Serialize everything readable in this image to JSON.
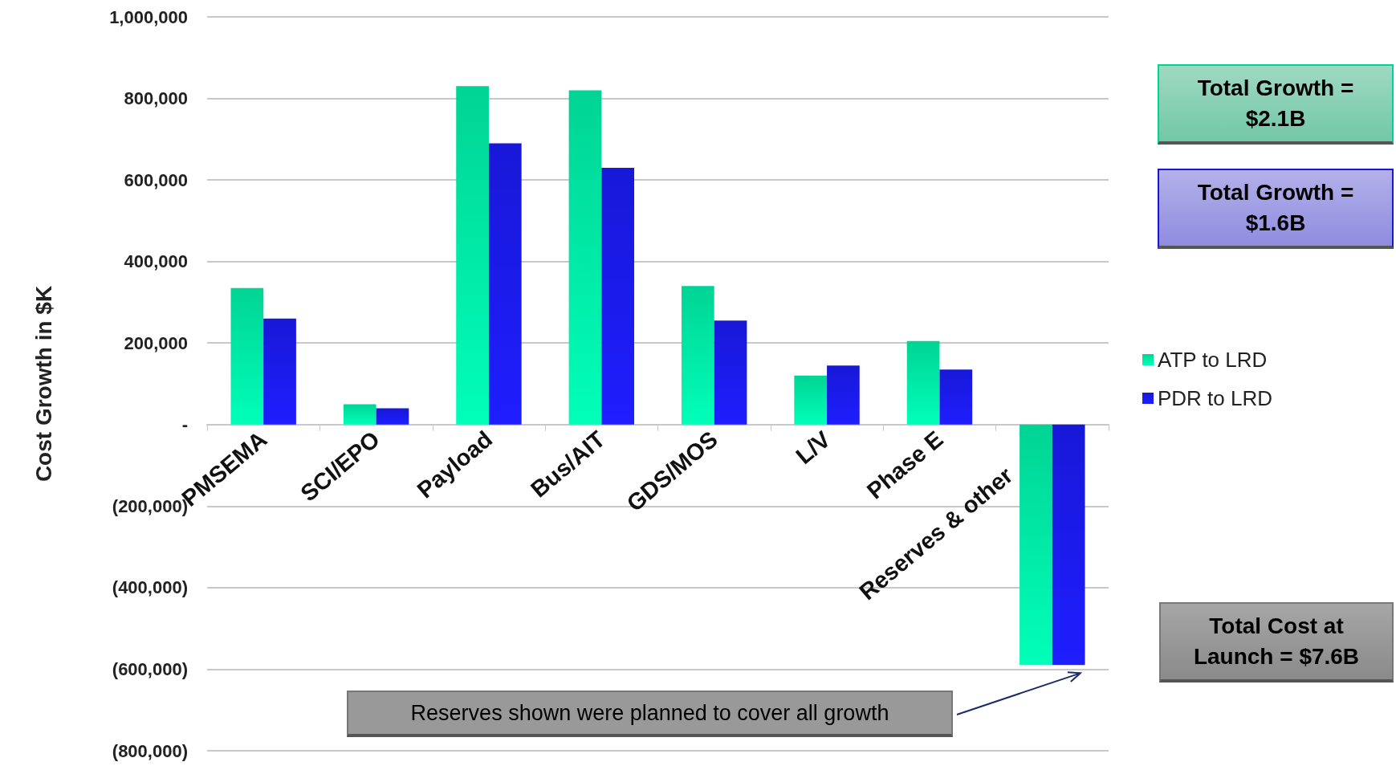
{
  "chart_data": {
    "type": "bar",
    "ylabel": "Cost Growth in $K",
    "categories": [
      "PMSEMA",
      "SCI/EPO",
      "Payload",
      "Bus/AIT",
      "GDS/MOS",
      "L/V",
      "Phase E",
      "Reserves & other"
    ],
    "series": [
      {
        "name": "ATP to LRD",
        "color": "#00d494",
        "values": [
          335000,
          50000,
          830000,
          820000,
          340000,
          120000,
          205000,
          -590000
        ]
      },
      {
        "name": "PDR to LRD",
        "color": "#1818d8",
        "values": [
          260000,
          40000,
          690000,
          630000,
          255000,
          145000,
          135000,
          -590000
        ]
      }
    ],
    "ylim": [
      -800000,
      1000000
    ],
    "yticks": [
      {
        "value": -800000,
        "label": "(800,000)"
      },
      {
        "value": -600000,
        "label": "(600,000)"
      },
      {
        "value": -400000,
        "label": "(400,000)"
      },
      {
        "value": -200000,
        "label": "(200,000)"
      },
      {
        "value": 0,
        "label": "-"
      },
      {
        "value": 200000,
        "label": "200,000"
      },
      {
        "value": 400000,
        "label": "400,000"
      },
      {
        "value": 600000,
        "label": "600,000"
      },
      {
        "value": 800000,
        "label": "800,000"
      },
      {
        "value": 1000000,
        "label": "1,000,000"
      }
    ],
    "grid": "y",
    "legend": "right",
    "annotations": [
      "Total Growth = $2.1B",
      "Total Growth = $1.6B",
      "Total Cost at Launch = $7.6B",
      "Reserves shown were planned to cover all growth"
    ]
  }
}
